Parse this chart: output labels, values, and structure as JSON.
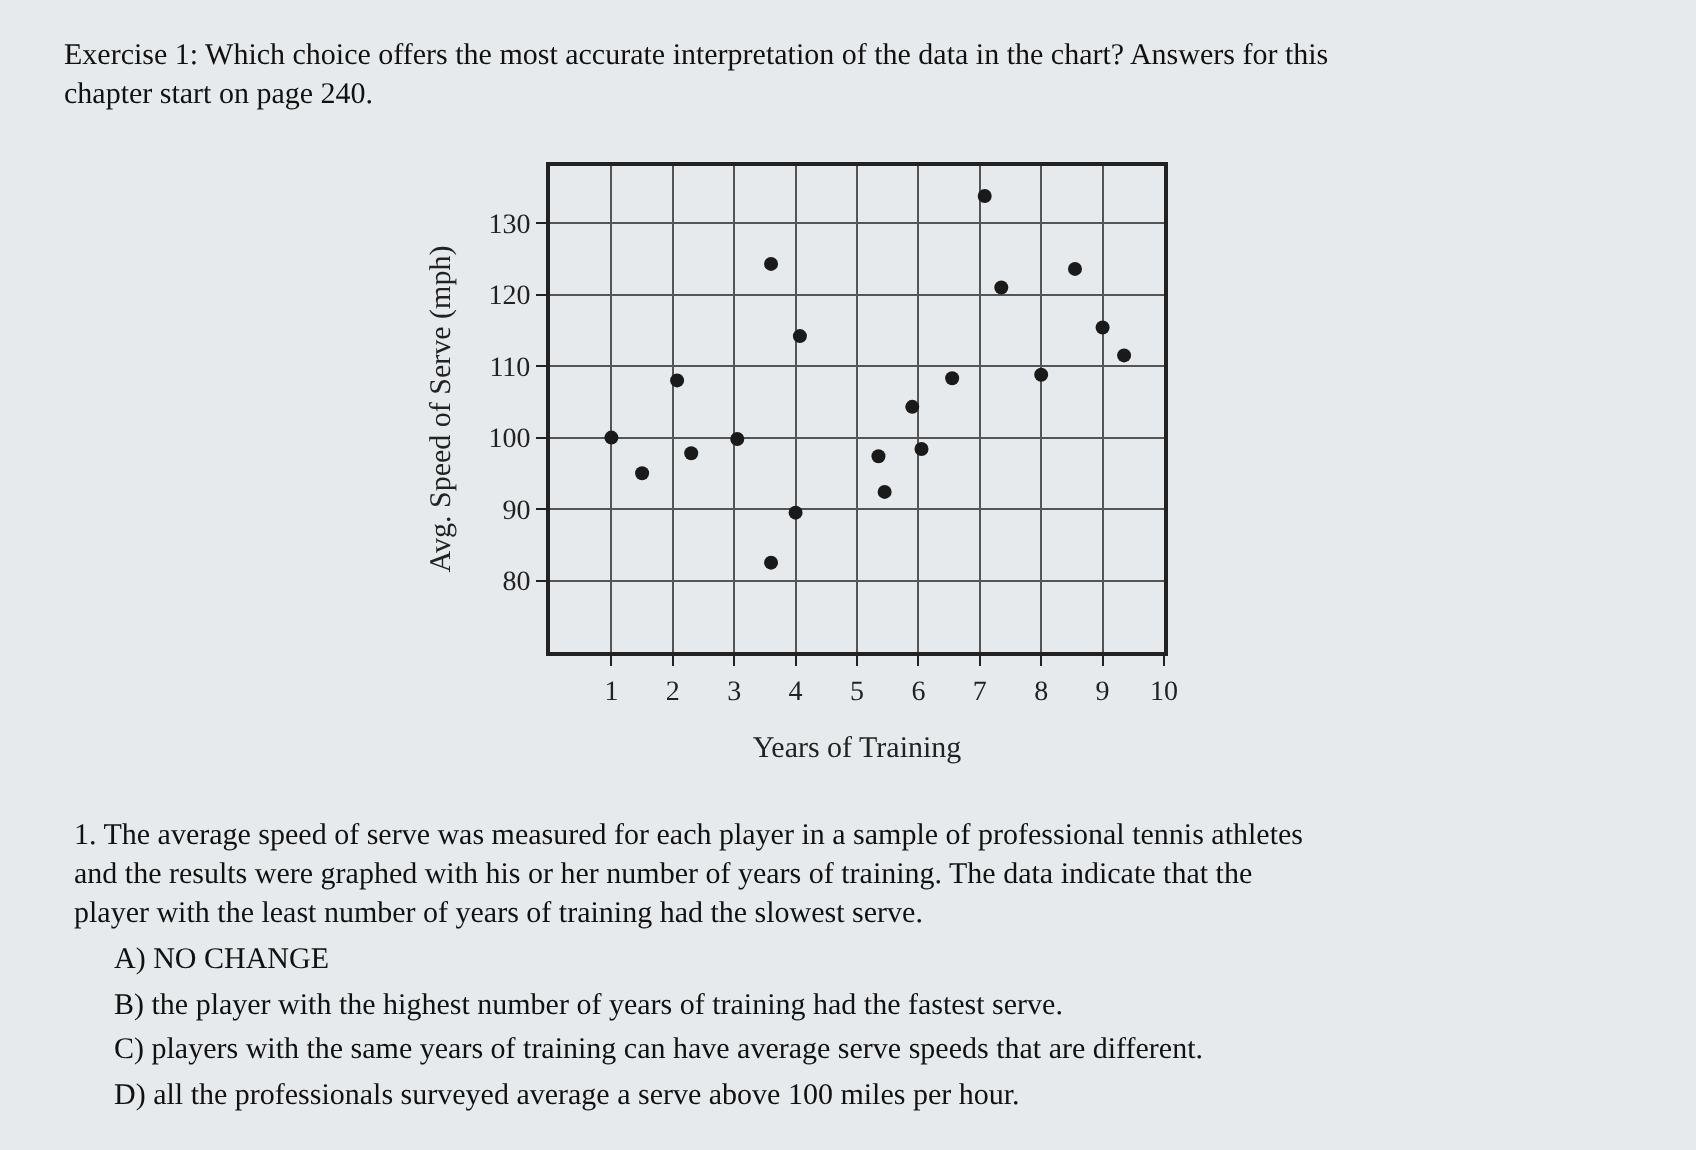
{
  "chart_data": {
    "type": "scatter",
    "xlabel": "Years of Training",
    "ylabel": "Avg. Speed of Serve (mph)",
    "x": [
      1,
      1.5,
      2.07,
      2.3,
      3.05,
      3.6,
      3.6,
      4.07,
      4.0,
      5.35,
      5.45,
      5.9,
      6.05,
      6.55,
      7.08,
      7.35,
      8.0,
      8.55,
      9.0,
      9.35
    ],
    "values": [
      100,
      95,
      108,
      97.8,
      99.8,
      124.3,
      82.5,
      114.2,
      89.5,
      97.4,
      92.4,
      104.3,
      98.4,
      108.3,
      133.8,
      121,
      108.8,
      123.6,
      115.4,
      111.5
    ],
    "color": "#1a1a1a",
    "marker": "circle",
    "xlim": [
      0,
      10
    ],
    "ylim": [
      70,
      138
    ],
    "xticks": [
      1,
      2,
      3,
      4,
      5,
      6,
      7,
      8,
      9,
      10
    ],
    "yticks": [
      80,
      90,
      100,
      110,
      120,
      130
    ],
    "grid": true,
    "legend": false,
    "annotations": [
      "Exercise 1: Which choice offers the most accurate interpretation of the data in the chart? Answers for this chapter start on page 240.",
      "1. The average speed of serve was measured for each player in a sample of professional tennis athletes and the results were graphed with his or her number of years of training. The data indicate that the player with the least number of years of training had the slowest serve.",
      "A) NO CHANGE",
      "B) the player with the highest number of years of training had the fastest serve.",
      "C) players with the same years of training can have average serve speeds that are different.",
      "D) all the professionals surveyed average a serve above 100 miles per hour."
    ]
  }
}
